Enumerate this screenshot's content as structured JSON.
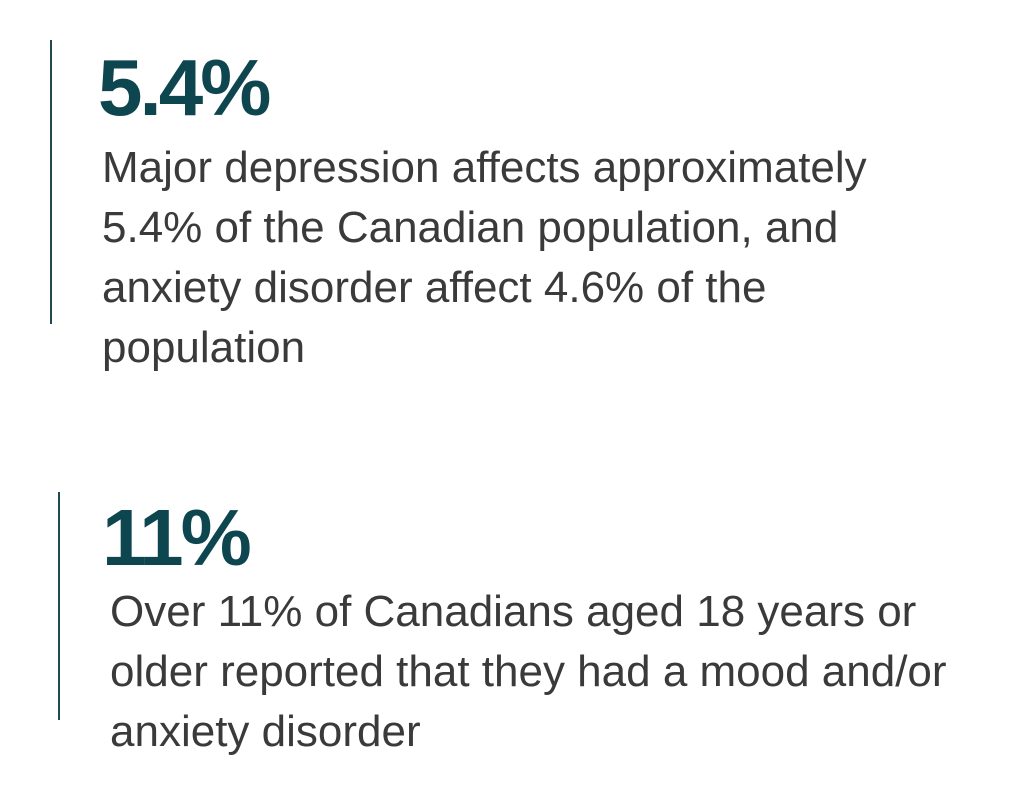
{
  "stats": [
    {
      "value": "5.4%",
      "description": "Major depression affects approximately 5.4% of the Canadian population, and anxiety disorder affect 4.6% of the population"
    },
    {
      "value": "11%",
      "description": "Over 11% of Canadians aged 18 years or older reported that they had a mood and/or anxiety disorder"
    }
  ],
  "colors": {
    "accent": "#0e4650",
    "rule": "#1f4a52",
    "text": "#3a3a3a",
    "background": "#ffffff"
  }
}
